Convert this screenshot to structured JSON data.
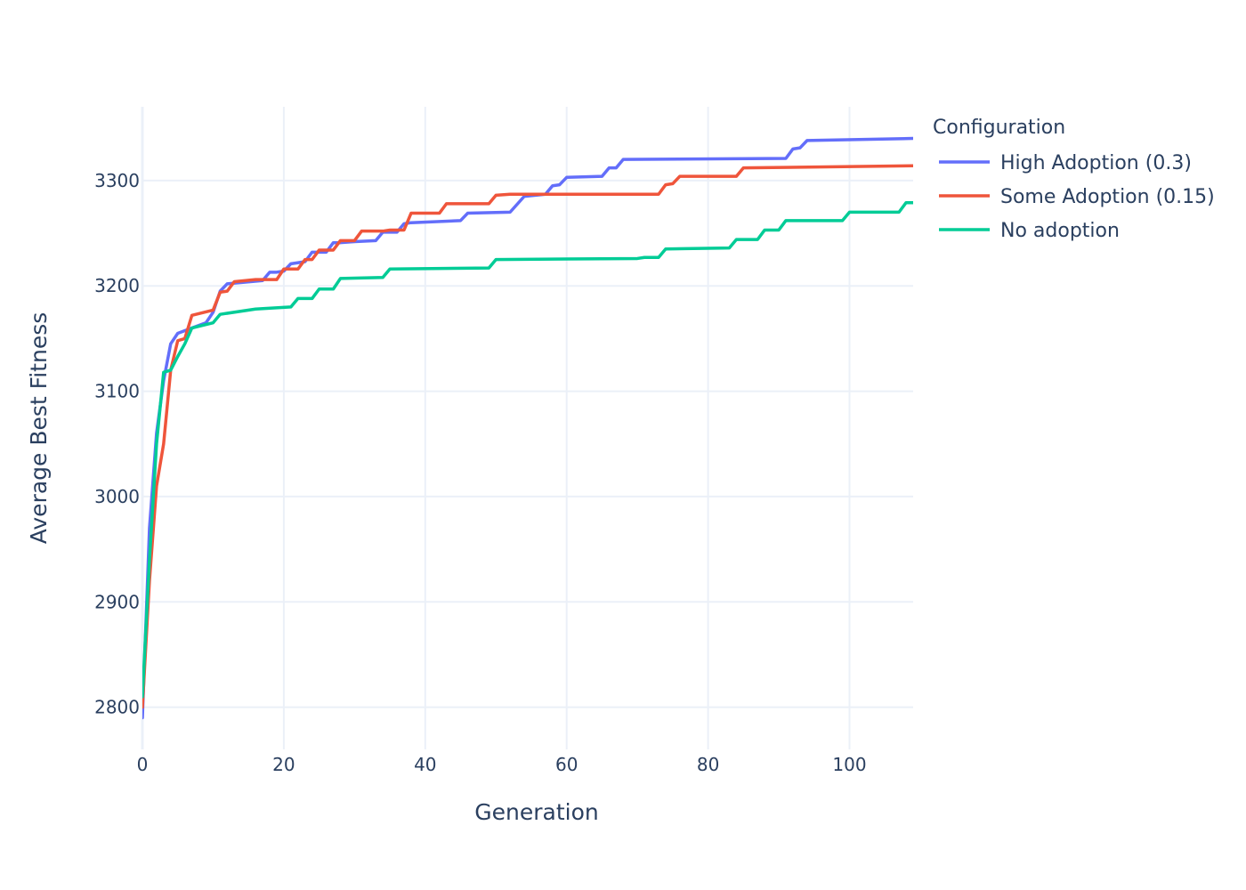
{
  "chart_data": {
    "type": "line",
    "title": "",
    "xlabel": "Generation",
    "ylabel": "Average Best Fitness",
    "xlim": [
      0,
      109
    ],
    "ylim": [
      2760,
      3370
    ],
    "x_ticks": [
      0,
      20,
      40,
      60,
      80,
      100
    ],
    "y_ticks": [
      2800,
      2900,
      3000,
      3100,
      3200,
      3300
    ],
    "grid": true,
    "legend": {
      "title": "Configuration",
      "placement": "top-right-outside"
    },
    "series": [
      {
        "name": "High Adoption (0.3)",
        "color": "#636efa",
        "x": [
          0,
          1,
          2,
          3,
          4,
          5,
          7,
          9,
          10,
          11,
          12,
          17,
          18,
          19,
          20,
          21,
          23,
          24,
          26,
          27,
          28,
          30,
          33,
          34,
          36,
          37,
          38,
          45,
          46,
          52,
          54,
          57,
          58,
          59,
          60,
          65,
          66,
          67,
          68,
          91,
          92,
          93,
          94,
          109
        ],
        "y": [
          2790,
          2970,
          3060,
          3110,
          3145,
          3155,
          3160,
          3165,
          3175,
          3195,
          3202,
          3205,
          3213,
          3213,
          3214,
          3221,
          3223,
          3232,
          3232,
          3241,
          3241,
          3242,
          3243,
          3251,
          3251,
          3259,
          3260,
          3262,
          3269,
          3270,
          3285,
          3287,
          3295,
          3296,
          3303,
          3304,
          3312,
          3312,
          3320,
          3321,
          3330,
          3331,
          3338,
          3340
        ]
      },
      {
        "name": "Some Adoption (0.15)",
        "color": "#ef553b",
        "x": [
          0,
          1,
          2,
          3,
          4,
          5,
          6,
          7,
          10,
          11,
          12,
          13,
          16,
          18,
          19,
          20,
          22,
          23,
          24,
          25,
          26,
          27,
          28,
          30,
          31,
          34,
          35,
          37,
          38,
          39,
          42,
          43,
          49,
          50,
          52,
          73,
          74,
          75,
          76,
          84,
          85,
          109
        ],
        "y": [
          2800,
          2920,
          3010,
          3050,
          3120,
          3148,
          3150,
          3172,
          3177,
          3194,
          3195,
          3204,
          3206,
          3206,
          3206,
          3216,
          3216,
          3225,
          3225,
          3234,
          3234,
          3234,
          3243,
          3243,
          3252,
          3252,
          3253,
          3253,
          3269,
          3269,
          3269,
          3278,
          3278,
          3286,
          3287,
          3287,
          3296,
          3297,
          3304,
          3304,
          3312,
          3314
        ]
      },
      {
        "name": "No adoption",
        "color": "#00cc96",
        "x": [
          0,
          1,
          2,
          3,
          4,
          5,
          6,
          7,
          10,
          11,
          16,
          21,
          22,
          24,
          25,
          27,
          28,
          34,
          35,
          49,
          50,
          70,
          71,
          73,
          74,
          83,
          84,
          87,
          88,
          90,
          91,
          99,
          100,
          107,
          108,
          109
        ],
        "y": [
          2810,
          2940,
          3050,
          3118,
          3120,
          3133,
          3145,
          3160,
          3165,
          3173,
          3178,
          3180,
          3188,
          3188,
          3197,
          3197,
          3207,
          3208,
          3216,
          3217,
          3225,
          3226,
          3227,
          3227,
          3235,
          3236,
          3244,
          3244,
          3253,
          3253,
          3262,
          3262,
          3270,
          3270,
          3279,
          3279
        ]
      }
    ]
  }
}
